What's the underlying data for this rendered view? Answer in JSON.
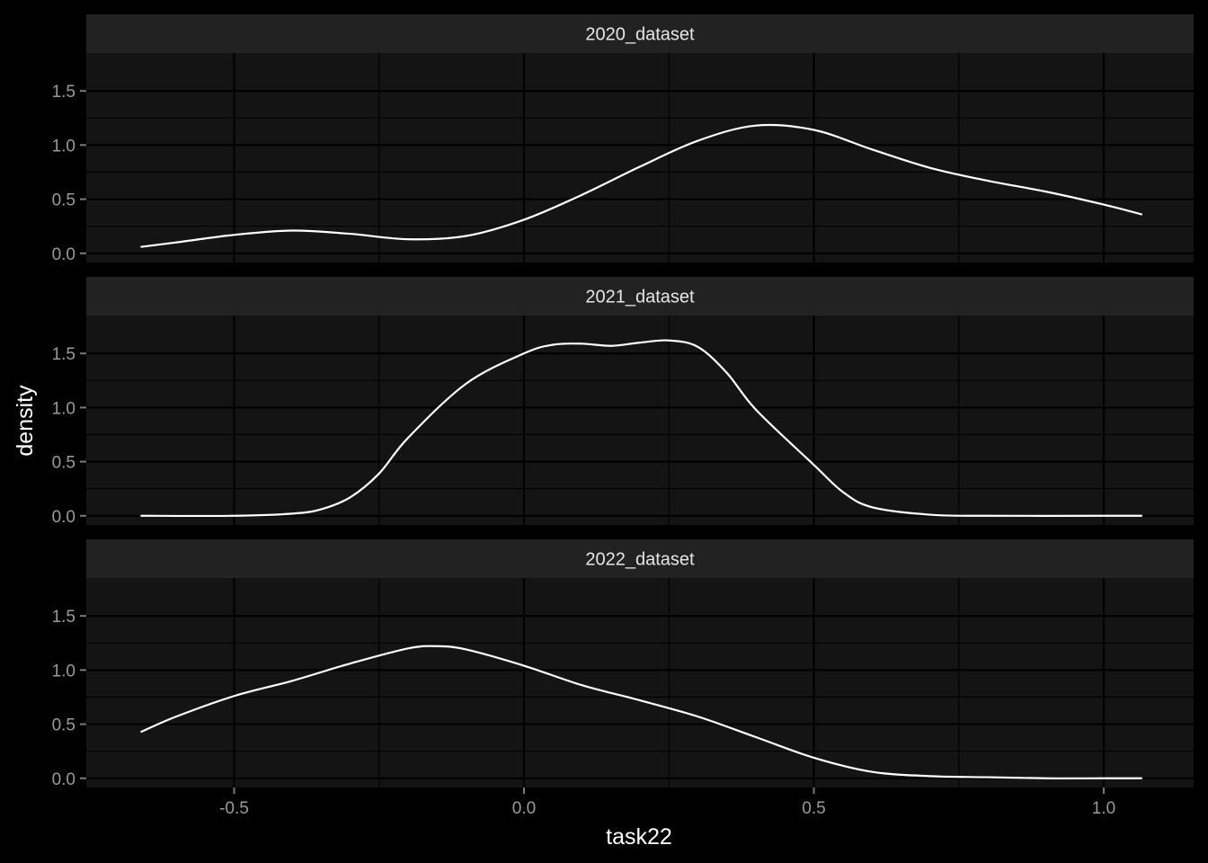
{
  "chart_data": {
    "type": "line",
    "xlabel": "task22",
    "ylabel": "density",
    "xlim": [
      -0.755,
      1.155
    ],
    "ylim": [
      -0.085,
      1.85
    ],
    "x_ticks": [
      -0.5,
      0.0,
      0.5,
      1.0
    ],
    "x_tick_labels": [
      "-0.5",
      "0.0",
      "0.5",
      "1.0"
    ],
    "y_ticks": [
      0.0,
      0.5,
      1.0,
      1.5
    ],
    "y_tick_labels": [
      "0.0",
      "0.5",
      "1.0",
      "1.5"
    ],
    "grid": true,
    "line_color": "#ffffff",
    "panel_background": "#141414",
    "strip_background": "#222222",
    "panels": [
      {
        "label": "2020_dataset",
        "x": [
          -0.66,
          -0.6,
          -0.5,
          -0.4,
          -0.3,
          -0.2,
          -0.1,
          0.0,
          0.1,
          0.2,
          0.3,
          0.4,
          0.5,
          0.6,
          0.7,
          0.8,
          0.9,
          1.0,
          1.065
        ],
        "y": [
          0.06,
          0.1,
          0.17,
          0.21,
          0.18,
          0.13,
          0.16,
          0.31,
          0.54,
          0.8,
          1.04,
          1.18,
          1.14,
          0.96,
          0.79,
          0.67,
          0.57,
          0.45,
          0.36
        ]
      },
      {
        "label": "2021_dataset",
        "x": [
          -0.66,
          -0.5,
          -0.4,
          -0.35,
          -0.3,
          -0.25,
          -0.2,
          -0.1,
          0.0,
          0.05,
          0.1,
          0.15,
          0.2,
          0.25,
          0.3,
          0.35,
          0.4,
          0.5,
          0.55,
          0.6,
          0.7,
          0.8,
          1.0,
          1.065
        ],
        "y": [
          0.0,
          0.0,
          0.02,
          0.06,
          0.17,
          0.39,
          0.72,
          1.22,
          1.5,
          1.58,
          1.59,
          1.57,
          1.6,
          1.62,
          1.56,
          1.32,
          0.98,
          0.47,
          0.22,
          0.08,
          0.01,
          0.0,
          0.0,
          0.0
        ]
      },
      {
        "label": "2022_dataset",
        "x": [
          -0.66,
          -0.6,
          -0.5,
          -0.4,
          -0.3,
          -0.2,
          -0.15,
          -0.1,
          0.0,
          0.1,
          0.2,
          0.3,
          0.4,
          0.5,
          0.6,
          0.7,
          0.8,
          0.9,
          1.0,
          1.065
        ],
        "y": [
          0.43,
          0.57,
          0.76,
          0.9,
          1.06,
          1.2,
          1.22,
          1.19,
          1.04,
          0.86,
          0.72,
          0.57,
          0.38,
          0.19,
          0.06,
          0.02,
          0.01,
          0.0,
          0.0,
          0.0
        ]
      }
    ]
  }
}
